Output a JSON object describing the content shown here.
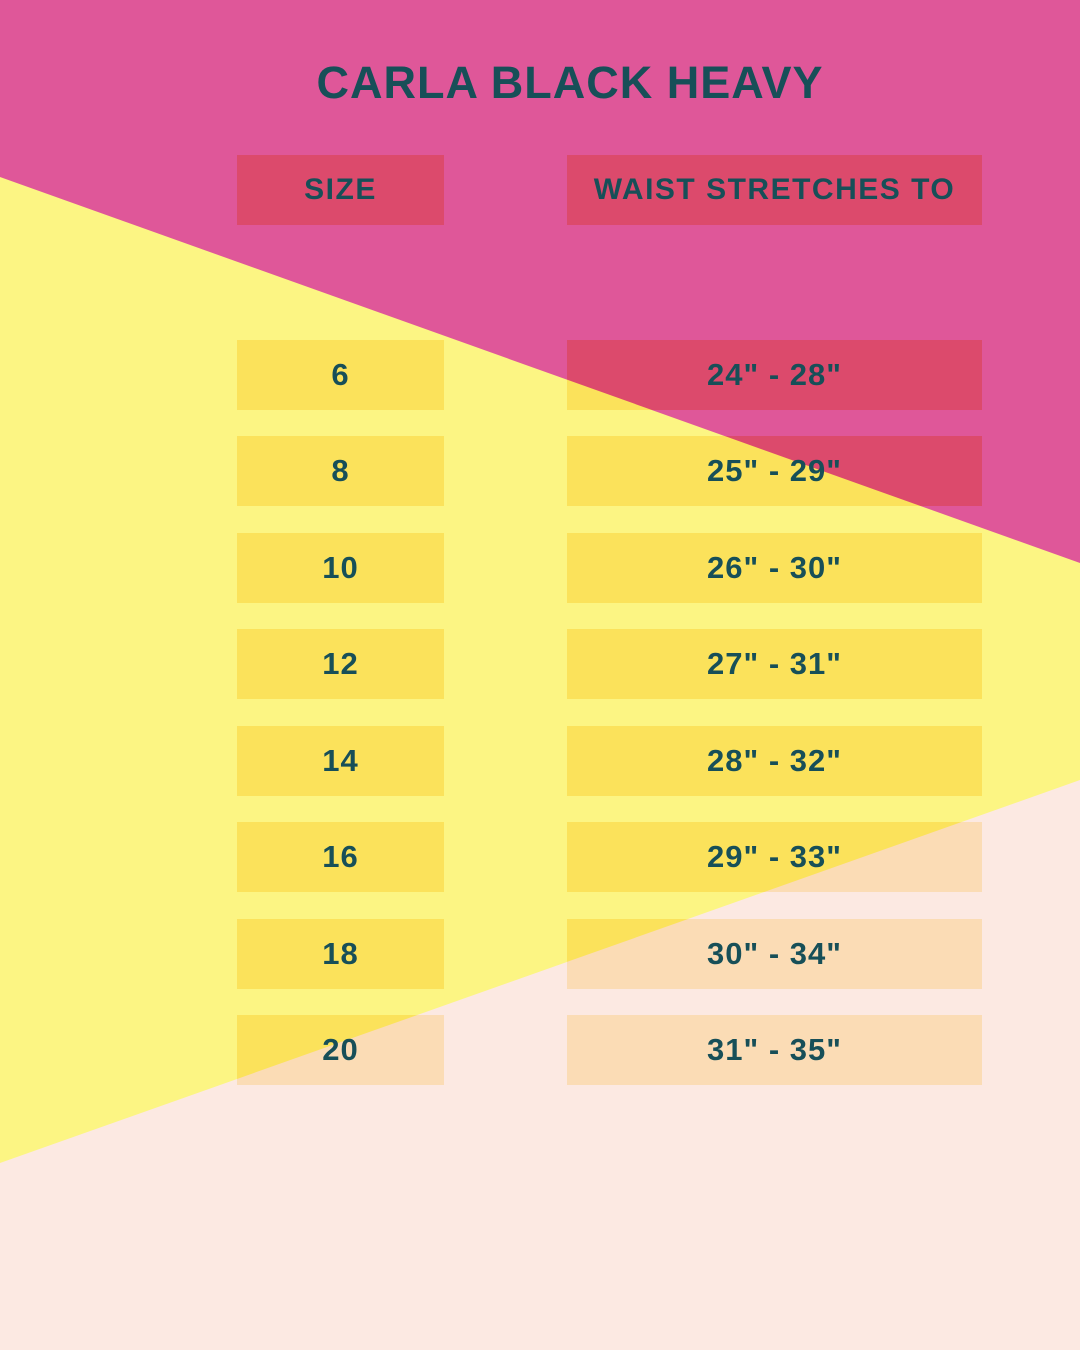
{
  "title": "CARLA BLACK HEAVY",
  "table": {
    "headers": {
      "size": "SIZE",
      "waist": "WAIST STRETCHES TO"
    },
    "rows": [
      {
        "size": "6",
        "waist": "24\" - 28\""
      },
      {
        "size": "8",
        "waist": "25\" - 29\""
      },
      {
        "size": "10",
        "waist": "26\" - 30\""
      },
      {
        "size": "12",
        "waist": "27\" - 31\""
      },
      {
        "size": "14",
        "waist": "28\" - 32\""
      },
      {
        "size": "16",
        "waist": "29\" - 33\""
      },
      {
        "size": "18",
        "waist": "30\" - 34\""
      },
      {
        "size": "20",
        "waist": "31\" - 35\""
      }
    ]
  },
  "colors": {
    "bg-pink": "#df5799",
    "bg-yellow": "#fcf583",
    "bg-cream": "#fce9e2",
    "cell-raspberry": "#dc4a6c",
    "cell-golden": "#fbe25b",
    "cell-peach": "#fbdcb5",
    "text-teal": "#174f58"
  },
  "chart_data": {
    "type": "table",
    "title": "CARLA BLACK HEAVY",
    "columns": [
      "SIZE",
      "WAIST STRETCHES TO"
    ],
    "rows": [
      [
        "6",
        "24\" - 28\""
      ],
      [
        "8",
        "25\" - 29\""
      ],
      [
        "10",
        "26\" - 30\""
      ],
      [
        "12",
        "27\" - 31\""
      ],
      [
        "14",
        "28\" - 32\""
      ],
      [
        "16",
        "29\" - 33\""
      ],
      [
        "18",
        "30\" - 34\""
      ],
      [
        "20",
        "31\" - 35\""
      ]
    ]
  }
}
